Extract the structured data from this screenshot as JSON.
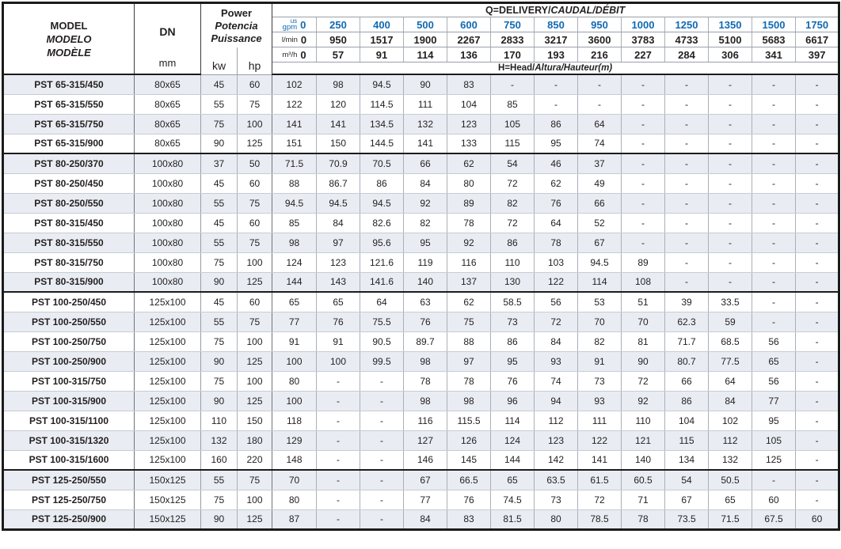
{
  "colors": {
    "accent_blue": "#1169b3",
    "text_dark": "#231f20",
    "stripe_bg": "#e9edf3",
    "border_dark": "#1b1b1b"
  },
  "table": {
    "header": {
      "model_lines": [
        "MODEL",
        "MODELO",
        "MODÈLE"
      ],
      "dn": "DN",
      "dn_unit": "mm",
      "power_lines": [
        "Power",
        "Potencia",
        "Puissance"
      ],
      "kw": "kw",
      "hp": "hp",
      "q_title": {
        "plain": "Q=DELIVERY/",
        "italic": "CAUDAL/DÉBIT"
      },
      "h_title": {
        "plain": "H=Head/",
        "italic": "Altura/Hauteur(m)"
      },
      "flow_units": [
        {
          "label_top": "us",
          "label": "gpm",
          "zero": "0",
          "style": "blue",
          "values": [
            "250",
            "400",
            "500",
            "600",
            "750",
            "850",
            "950",
            "1000",
            "1250",
            "1350",
            "1500",
            "1750"
          ]
        },
        {
          "label_top": "",
          "label": "l/min",
          "zero": "0",
          "style": "dark",
          "values": [
            "950",
            "1517",
            "1900",
            "2267",
            "2833",
            "3217",
            "3600",
            "3783",
            "4733",
            "5100",
            "5683",
            "6617"
          ]
        },
        {
          "label_top": "",
          "label": "m³/h",
          "zero": "0",
          "style": "dark",
          "values": [
            "57",
            "91",
            "114",
            "136",
            "170",
            "193",
            "216",
            "227",
            "284",
            "306",
            "341",
            "397"
          ]
        }
      ]
    },
    "rows": [
      {
        "model": "PST 65-315/450",
        "dn": "80x65",
        "kw": "45",
        "hp": "60",
        "head": [
          "102",
          "98",
          "94.5",
          "90",
          "83",
          "-",
          "-",
          "-",
          "-",
          "-",
          "-",
          "-",
          "-"
        ],
        "group_end": false
      },
      {
        "model": "PST 65-315/550",
        "dn": "80x65",
        "kw": "55",
        "hp": "75",
        "head": [
          "122",
          "120",
          "114.5",
          "111",
          "104",
          "85",
          "-",
          "-",
          "-",
          "-",
          "-",
          "-",
          "-"
        ],
        "group_end": false
      },
      {
        "model": "PST 65-315/750",
        "dn": "80x65",
        "kw": "75",
        "hp": "100",
        "head": [
          "141",
          "141",
          "134.5",
          "132",
          "123",
          "105",
          "86",
          "64",
          "-",
          "-",
          "-",
          "-",
          "-"
        ],
        "group_end": false
      },
      {
        "model": "PST 65-315/900",
        "dn": "80x65",
        "kw": "90",
        "hp": "125",
        "head": [
          "151",
          "150",
          "144.5",
          "141",
          "133",
          "115",
          "95",
          "74",
          "-",
          "-",
          "-",
          "-",
          "-"
        ],
        "group_end": true
      },
      {
        "model": "PST 80-250/370",
        "dn": "100x80",
        "kw": "37",
        "hp": "50",
        "head": [
          "71.5",
          "70.9",
          "70.5",
          "66",
          "62",
          "54",
          "46",
          "37",
          "-",
          "-",
          "-",
          "-",
          "-"
        ],
        "group_end": false
      },
      {
        "model": "PST 80-250/450",
        "dn": "100x80",
        "kw": "45",
        "hp": "60",
        "head": [
          "88",
          "86.7",
          "86",
          "84",
          "80",
          "72",
          "62",
          "49",
          "-",
          "-",
          "-",
          "-",
          "-"
        ],
        "group_end": false
      },
      {
        "model": "PST 80-250/550",
        "dn": "100x80",
        "kw": "55",
        "hp": "75",
        "head": [
          "94.5",
          "94.5",
          "94.5",
          "92",
          "89",
          "82",
          "76",
          "66",
          "-",
          "-",
          "-",
          "-",
          "-"
        ],
        "group_end": false
      },
      {
        "model": "PST 80-315/450",
        "dn": "100x80",
        "kw": "45",
        "hp": "60",
        "head": [
          "85",
          "84",
          "82.6",
          "82",
          "78",
          "72",
          "64",
          "52",
          "-",
          "-",
          "-",
          "-",
          "-"
        ],
        "group_end": false
      },
      {
        "model": "PST 80-315/550",
        "dn": "100x80",
        "kw": "55",
        "hp": "75",
        "head": [
          "98",
          "97",
          "95.6",
          "95",
          "92",
          "86",
          "78",
          "67",
          "-",
          "-",
          "-",
          "-",
          "-"
        ],
        "group_end": false
      },
      {
        "model": "PST 80-315/750",
        "dn": "100x80",
        "kw": "75",
        "hp": "100",
        "head": [
          "124",
          "123",
          "121.6",
          "119",
          "116",
          "110",
          "103",
          "94.5",
          "89",
          "-",
          "-",
          "-",
          "-"
        ],
        "group_end": false
      },
      {
        "model": "PST 80-315/900",
        "dn": "100x80",
        "kw": "90",
        "hp": "125",
        "head": [
          "144",
          "143",
          "141.6",
          "140",
          "137",
          "130",
          "122",
          "114",
          "108",
          "-",
          "-",
          "-",
          "-"
        ],
        "group_end": true
      },
      {
        "model": "PST 100-250/450",
        "dn": "125x100",
        "kw": "45",
        "hp": "60",
        "head": [
          "65",
          "65",
          "64",
          "63",
          "62",
          "58.5",
          "56",
          "53",
          "51",
          "39",
          "33.5",
          "-",
          "-"
        ],
        "group_end": false
      },
      {
        "model": "PST 100-250/550",
        "dn": "125x100",
        "kw": "55",
        "hp": "75",
        "head": [
          "77",
          "76",
          "75.5",
          "76",
          "75",
          "73",
          "72",
          "70",
          "70",
          "62.3",
          "59",
          "-",
          "-"
        ],
        "group_end": false
      },
      {
        "model": "PST 100-250/750",
        "dn": "125x100",
        "kw": "75",
        "hp": "100",
        "head": [
          "91",
          "91",
          "90.5",
          "89.7",
          "88",
          "86",
          "84",
          "82",
          "81",
          "71.7",
          "68.5",
          "56",
          "-"
        ],
        "group_end": false
      },
      {
        "model": "PST 100-250/900",
        "dn": "125x100",
        "kw": "90",
        "hp": "125",
        "head": [
          "100",
          "100",
          "99.5",
          "98",
          "97",
          "95",
          "93",
          "91",
          "90",
          "80.7",
          "77.5",
          "65",
          "-"
        ],
        "group_end": false
      },
      {
        "model": "PST 100-315/750",
        "dn": "125x100",
        "kw": "75",
        "hp": "100",
        "head": [
          "80",
          "-",
          "-",
          "78",
          "78",
          "76",
          "74",
          "73",
          "72",
          "66",
          "64",
          "56",
          "-"
        ],
        "group_end": false
      },
      {
        "model": "PST 100-315/900",
        "dn": "125x100",
        "kw": "90",
        "hp": "125",
        "head": [
          "100",
          "-",
          "-",
          "98",
          "98",
          "96",
          "94",
          "93",
          "92",
          "86",
          "84",
          "77",
          "-"
        ],
        "group_end": false
      },
      {
        "model": "PST 100-315/1100",
        "dn": "125x100",
        "kw": "110",
        "hp": "150",
        "head": [
          "118",
          "-",
          "-",
          "116",
          "115.5",
          "114",
          "112",
          "111",
          "110",
          "104",
          "102",
          "95",
          "-"
        ],
        "group_end": false
      },
      {
        "model": "PST 100-315/1320",
        "dn": "125x100",
        "kw": "132",
        "hp": "180",
        "head": [
          "129",
          "-",
          "-",
          "127",
          "126",
          "124",
          "123",
          "122",
          "121",
          "115",
          "112",
          "105",
          "-"
        ],
        "group_end": false
      },
      {
        "model": "PST 100-315/1600",
        "dn": "125x100",
        "kw": "160",
        "hp": "220",
        "head": [
          "148",
          "-",
          "-",
          "146",
          "145",
          "144",
          "142",
          "141",
          "140",
          "134",
          "132",
          "125",
          "-"
        ],
        "group_end": true
      },
      {
        "model": "PST 125-250/550",
        "dn": "150x125",
        "kw": "55",
        "hp": "75",
        "head": [
          "70",
          "-",
          "-",
          "67",
          "66.5",
          "65",
          "63.5",
          "61.5",
          "60.5",
          "54",
          "50.5",
          "-",
          "-"
        ],
        "group_end": false
      },
      {
        "model": "PST 125-250/750",
        "dn": "150x125",
        "kw": "75",
        "hp": "100",
        "head": [
          "80",
          "-",
          "-",
          "77",
          "76",
          "74.5",
          "73",
          "72",
          "71",
          "67",
          "65",
          "60",
          "-"
        ],
        "group_end": false
      },
      {
        "model": "PST 125-250/900",
        "dn": "150x125",
        "kw": "90",
        "hp": "125",
        "head": [
          "87",
          "-",
          "-",
          "84",
          "83",
          "81.5",
          "80",
          "78.5",
          "78",
          "73.5",
          "71.5",
          "67.5",
          "60"
        ],
        "group_end": false
      }
    ]
  }
}
